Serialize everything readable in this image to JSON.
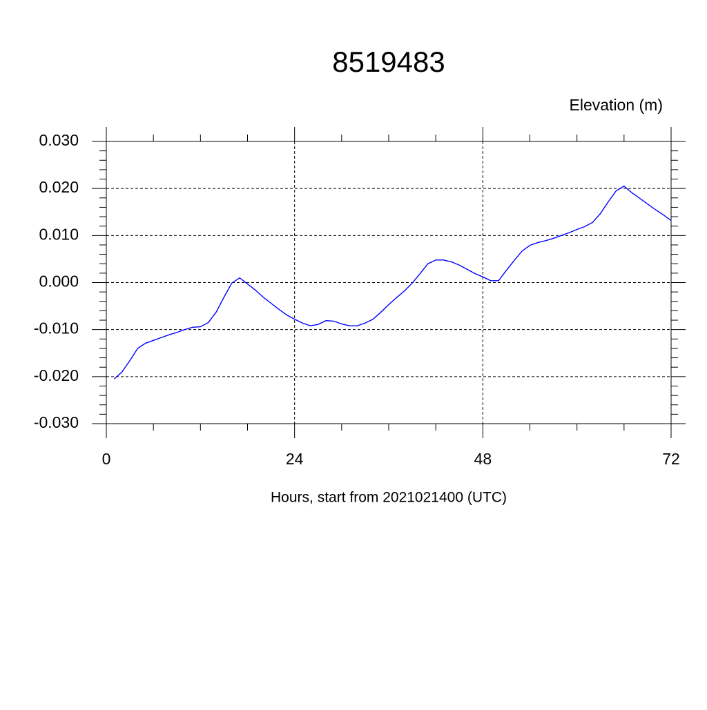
{
  "chart_data": {
    "type": "line",
    "title": "8519483",
    "ylabel": "Elevation (m)",
    "xlabel": "Hours, start from 2021021400 (UTC)",
    "x": [
      1,
      2,
      3,
      4,
      5,
      6,
      7,
      8,
      9,
      10,
      11,
      12,
      13,
      14,
      15,
      16,
      17,
      18,
      19,
      20,
      21,
      22,
      23,
      24,
      25,
      26,
      27,
      28,
      29,
      30,
      31,
      32,
      33,
      34,
      35,
      36,
      37,
      38,
      39,
      40,
      41,
      42,
      43,
      44,
      45,
      46,
      47,
      48,
      49,
      50,
      51,
      52,
      53,
      54,
      55,
      56,
      57,
      58,
      59,
      60,
      61,
      62,
      63,
      64,
      65,
      66,
      67,
      68,
      69,
      70,
      71,
      72
    ],
    "series": [
      {
        "name": "Elevation",
        "color": "#0000ff",
        "values": [
          -0.0205,
          -0.019,
          -0.0166,
          -0.014,
          -0.0129,
          -0.0123,
          -0.0117,
          -0.0111,
          -0.0106,
          -0.01,
          -0.0095,
          -0.0094,
          -0.0085,
          -0.0063,
          -0.0031,
          -0.0001,
          0.001,
          -0.0003,
          -0.0016,
          -0.0031,
          -0.0044,
          -0.0057,
          -0.0069,
          -0.0078,
          -0.0086,
          -0.0092,
          -0.0089,
          -0.0081,
          -0.0082,
          -0.0088,
          -0.0092,
          -0.0092,
          -0.0086,
          -0.0078,
          -0.0063,
          -0.0047,
          -0.0032,
          -0.0018,
          -0.0001,
          0.0019,
          0.004,
          0.0048,
          0.0048,
          0.0044,
          0.0037,
          0.0028,
          0.0019,
          0.0012,
          0.0004,
          0.0004,
          0.0026,
          0.0047,
          0.0067,
          0.0079,
          0.0085,
          0.0089,
          0.0094,
          0.01,
          0.0106,
          0.0113,
          0.0119,
          0.0128,
          0.0147,
          0.0172,
          0.0195,
          0.0205,
          0.0191,
          0.0179,
          0.0167,
          0.0155,
          0.0144,
          0.0132
        ]
      }
    ],
    "xlim": [
      0,
      72
    ],
    "xticks": [
      0,
      24,
      48,
      72
    ],
    "xminorticks": [
      6,
      12,
      18,
      30,
      36,
      42,
      54,
      60,
      66
    ],
    "ylim": [
      -0.03,
      0.03
    ],
    "yticks": [
      {
        "value": 0.03,
        "label": "0.030"
      },
      {
        "value": 0.02,
        "label": "0.020"
      },
      {
        "value": 0.01,
        "label": "0.010"
      },
      {
        "value": 0,
        "label": "0.000"
      },
      {
        "value": -0.01,
        "label": "-0.010"
      },
      {
        "value": -0.02,
        "label": "-0.020"
      },
      {
        "value": -0.03,
        "label": "-0.030"
      }
    ],
    "yminorticks": [
      0.028,
      0.026,
      0.024,
      0.022,
      0.018,
      0.016,
      0.014,
      0.012,
      0.008,
      0.006,
      0.004,
      0.002,
      -0.002,
      -0.004,
      -0.006,
      -0.008,
      -0.012,
      -0.014,
      -0.016,
      -0.018,
      -0.022,
      -0.024,
      -0.026,
      -0.028
    ],
    "grid": true
  }
}
